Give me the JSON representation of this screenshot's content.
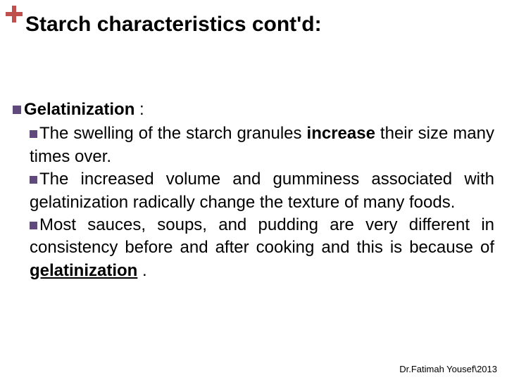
{
  "colors": {
    "plus_icon": "#c0504d",
    "bullet": "#604a7b",
    "text": "#000000",
    "background": "#ffffff"
  },
  "typography": {
    "title_fontsize": 30,
    "body_fontsize": 24,
    "footer_fontsize": 13,
    "font_family": "Arial"
  },
  "title": "Starch characteristics cont'd:",
  "heading": {
    "label": "Gelatinization",
    "suffix": ":"
  },
  "points": [
    {
      "prefix": "The",
      "mid1": " swelling of the starch granules ",
      "bold1": "increase",
      "tail": " their size many times over."
    },
    {
      "text": "The increased volume and gumminess associated with gelatinization radically change the texture of many foods."
    },
    {
      "prefix": "Most sauces, soups, and pudding are very different in consistency before and after cooking and this is because of ",
      "underline_bold": "gelatinization",
      "suffix": " ."
    }
  ],
  "footer": "Dr.Fatimah Yousef\\2013"
}
